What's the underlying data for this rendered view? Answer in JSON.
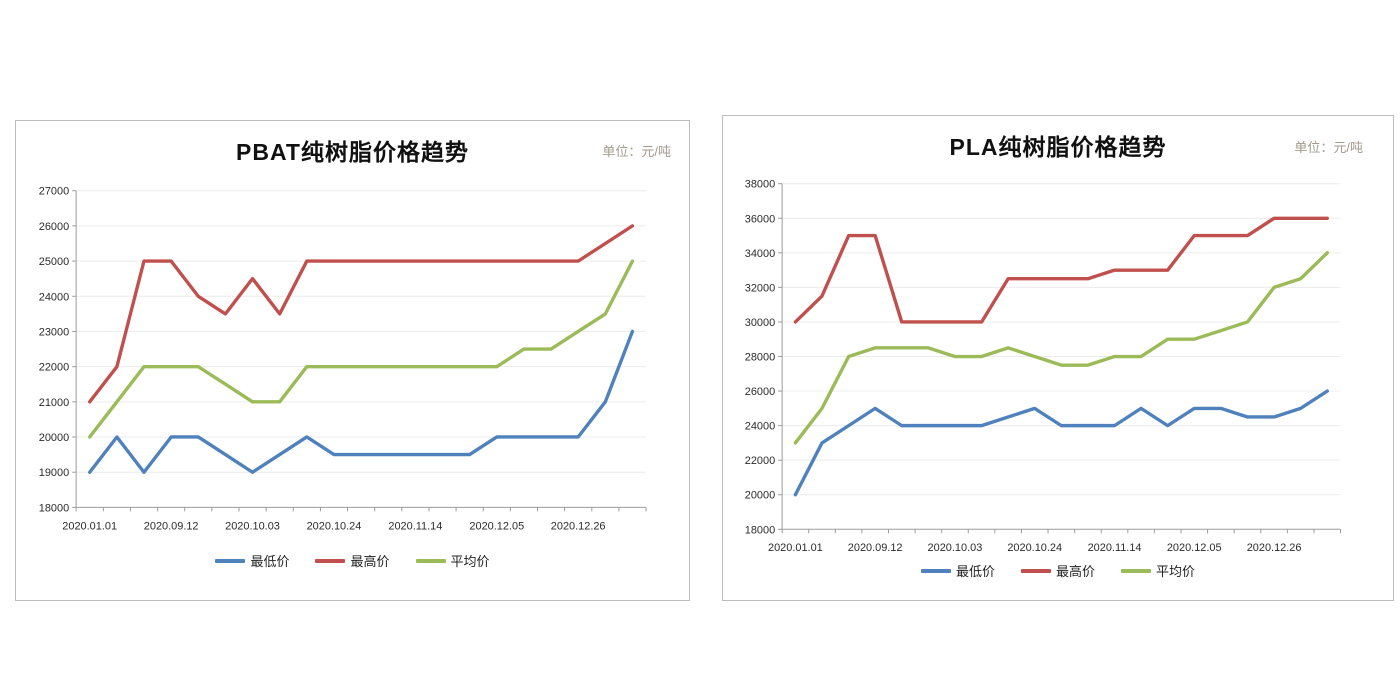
{
  "chart_data": [
    {
      "type": "line",
      "title": "PBAT纯树脂价格趋势",
      "unit_label": "单位：元/吨",
      "x_labels": [
        "2020.01.01",
        "2020.09.12",
        "2020.10.03",
        "2020.10.24",
        "2020.11.14",
        "2020.12.05",
        "2020.12.26"
      ],
      "x_label_every": 3,
      "ylim": [
        18000,
        27000
      ],
      "ystep": 1000,
      "grid": true,
      "legend_position": "bottom",
      "series": [
        {
          "name": "最低价",
          "color": "#4F81BD",
          "values": [
            19000,
            20000,
            19000,
            20000,
            20000,
            19500,
            19000,
            19500,
            20000,
            19500,
            19500,
            19500,
            19500,
            19500,
            19500,
            20000,
            20000,
            20000,
            20000,
            21000,
            23000
          ]
        },
        {
          "name": "最高价",
          "color": "#C0504D",
          "values": [
            21000,
            22000,
            25000,
            25000,
            24000,
            23500,
            24500,
            23500,
            25000,
            25000,
            25000,
            25000,
            25000,
            25000,
            25000,
            25000,
            25000,
            25000,
            25000,
            25500,
            26000
          ]
        },
        {
          "name": "平均价",
          "color": "#9BBB59",
          "values": [
            20000,
            21000,
            22000,
            22000,
            22000,
            21500,
            21000,
            21000,
            22000,
            22000,
            22000,
            22000,
            22000,
            22000,
            22000,
            22000,
            22500,
            22500,
            23000,
            23500,
            25000
          ]
        }
      ]
    },
    {
      "type": "line",
      "title": "PLA纯树脂价格趋势",
      "unit_label": "单位：元/吨",
      "x_labels": [
        "2020.01.01",
        "2020.09.12",
        "2020.10.03",
        "2020.10.24",
        "2020.11.14",
        "2020.12.05",
        "2020.12.26"
      ],
      "x_label_every": 3,
      "ylim": [
        18000,
        38000
      ],
      "ystep": 2000,
      "grid": true,
      "legend_position": "bottom",
      "series": [
        {
          "name": "最低价",
          "color": "#4F81BD",
          "values": [
            20000,
            23000,
            24000,
            25000,
            24000,
            24000,
            24000,
            24000,
            24500,
            25000,
            24000,
            24000,
            24000,
            25000,
            24000,
            25000,
            25000,
            24500,
            24500,
            25000,
            26000
          ]
        },
        {
          "name": "最高价",
          "color": "#C0504D",
          "values": [
            30000,
            31500,
            35000,
            35000,
            30000,
            30000,
            30000,
            30000,
            32500,
            32500,
            32500,
            32500,
            33000,
            33000,
            33000,
            35000,
            35000,
            35000,
            36000,
            36000,
            36000
          ]
        },
        {
          "name": "平均价",
          "color": "#9BBB59",
          "values": [
            23000,
            25000,
            28000,
            28500,
            28500,
            28500,
            28000,
            28000,
            28500,
            28000,
            27500,
            27500,
            28000,
            28000,
            29000,
            29000,
            29500,
            30000,
            32000,
            32500,
            34000
          ]
        }
      ]
    }
  ]
}
